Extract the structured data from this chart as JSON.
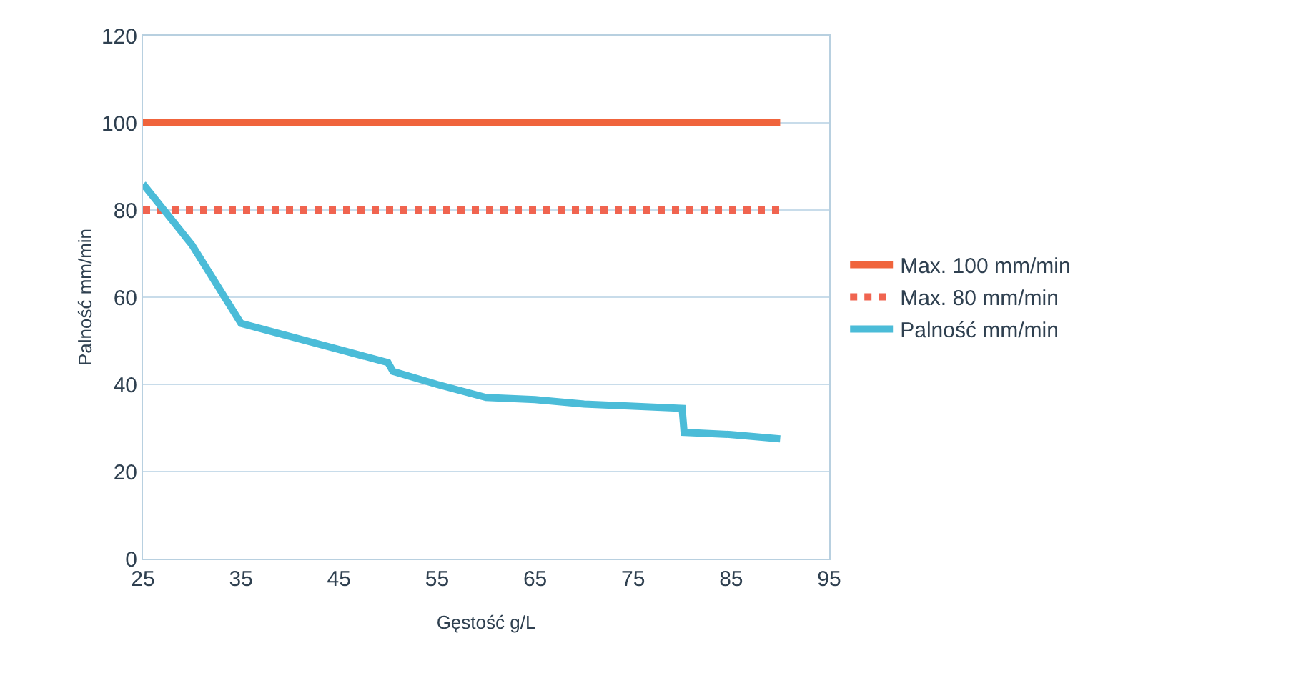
{
  "chart_data": {
    "type": "line",
    "xlabel": "Gęstość g/L",
    "ylabel": "Palność mm/min",
    "xlim": [
      25,
      95
    ],
    "xticks": [
      25,
      35,
      45,
      55,
      65,
      75,
      85,
      95
    ],
    "ylim": [
      0,
      120
    ],
    "yticks": [
      0,
      20,
      40,
      60,
      80,
      100,
      120
    ],
    "grid": "y",
    "legend": "right",
    "marker": "none",
    "series": [
      {
        "name": "Max. 100 mm/min",
        "color": "#f0643c",
        "line_style": "solid",
        "x": [
          25,
          90
        ],
        "values": [
          100,
          100
        ]
      },
      {
        "name": "Max. 80 mm/min",
        "color": "#f06450",
        "line_style": "dotted",
        "x": [
          25,
          90
        ],
        "values": [
          80,
          80
        ]
      },
      {
        "name": "Palność mm/min",
        "color": "#4bbcd8",
        "line_style": "solid",
        "x": [
          25,
          30,
          35,
          40,
          45,
          50,
          50.5,
          55,
          60,
          65,
          70,
          75,
          80,
          80.2,
          85,
          90
        ],
        "values": [
          86,
          72,
          54,
          51,
          48,
          45,
          43,
          40,
          37,
          36.5,
          35.5,
          35,
          34.5,
          29,
          28.5,
          27.5
        ]
      }
    ]
  }
}
